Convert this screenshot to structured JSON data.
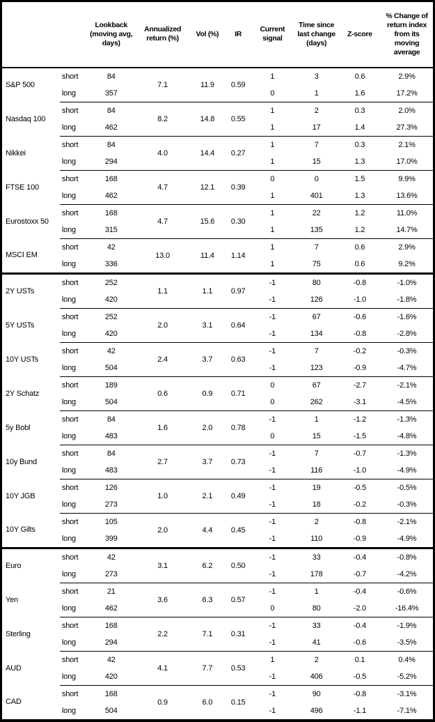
{
  "header": {
    "col_asset": "",
    "col_horizon": "",
    "col_lookback": "Lookback (moving avg, days)",
    "col_annualized_return": "Annualized return (%)",
    "col_vol": "Vol (%)",
    "col_ir": "IR",
    "col_current_signal": "Current signal",
    "col_time_since": "Time since last change (days)",
    "col_zscore": "Z-score",
    "col_pct_change": "% Change of return index from its moving average"
  },
  "colors": {
    "text": "#000000",
    "border": "#000000",
    "background": "#ffffff"
  },
  "sections": [
    [
      {
        "name": "S&P 500",
        "annualized_return": "7.1",
        "vol": "11.9",
        "ir": "0.59",
        "rows": [
          {
            "label": "short",
            "lookback": "84",
            "signal": "1",
            "days": "3",
            "zscore": "0.6",
            "pct_change": "2.9%"
          },
          {
            "label": "long",
            "lookback": "357",
            "signal": "0",
            "days": "1",
            "zscore": "1.6",
            "pct_change": "17.2%"
          }
        ]
      },
      {
        "name": "Nasdaq 100",
        "annualized_return": "8.2",
        "vol": "14.8",
        "ir": "0.55",
        "rows": [
          {
            "label": "short",
            "lookback": "84",
            "signal": "1",
            "days": "2",
            "zscore": "0.3",
            "pct_change": "2.0%"
          },
          {
            "label": "long",
            "lookback": "462",
            "signal": "1",
            "days": "17",
            "zscore": "1.4",
            "pct_change": "27.3%"
          }
        ]
      },
      {
        "name": "Nikkei",
        "annualized_return": "4.0",
        "vol": "14.4",
        "ir": "0.27",
        "rows": [
          {
            "label": "short",
            "lookback": "84",
            "signal": "1",
            "days": "7",
            "zscore": "0.3",
            "pct_change": "2.1%"
          },
          {
            "label": "long",
            "lookback": "294",
            "signal": "1",
            "days": "15",
            "zscore": "1.3",
            "pct_change": "17.0%"
          }
        ]
      },
      {
        "name": "FTSE 100",
        "annualized_return": "4.7",
        "vol": "12.1",
        "ir": "0.39",
        "rows": [
          {
            "label": "short",
            "lookback": "168",
            "signal": "0",
            "days": "0",
            "zscore": "1.5",
            "pct_change": "9.9%"
          },
          {
            "label": "long",
            "lookback": "462",
            "signal": "1",
            "days": "401",
            "zscore": "1.3",
            "pct_change": "13.6%"
          }
        ]
      },
      {
        "name": "Eurostoxx 50",
        "annualized_return": "4.7",
        "vol": "15.6",
        "ir": "0.30",
        "rows": [
          {
            "label": "short",
            "lookback": "168",
            "signal": "1",
            "days": "22",
            "zscore": "1.2",
            "pct_change": "11.0%"
          },
          {
            "label": "long",
            "lookback": "315",
            "signal": "1",
            "days": "135",
            "zscore": "1.2",
            "pct_change": "14.7%"
          }
        ]
      },
      {
        "name": "MSCI EM",
        "annualized_return": "13.0",
        "vol": "11.4",
        "ir": "1.14",
        "rows": [
          {
            "label": "short",
            "lookback": "42",
            "signal": "1",
            "days": "7",
            "zscore": "0.6",
            "pct_change": "2.9%"
          },
          {
            "label": "long",
            "lookback": "336",
            "signal": "1",
            "days": "75",
            "zscore": "0.6",
            "pct_change": "9.2%"
          }
        ]
      }
    ],
    [
      {
        "name": "2Y USTs",
        "annualized_return": "1.1",
        "vol": "1.1",
        "ir": "0.97",
        "rows": [
          {
            "label": "short",
            "lookback": "252",
            "signal": "-1",
            "days": "80",
            "zscore": "-0.8",
            "pct_change": "-1.0%"
          },
          {
            "label": "long",
            "lookback": "420",
            "signal": "-1",
            "days": "126",
            "zscore": "-1.0",
            "pct_change": "-1.8%"
          }
        ]
      },
      {
        "name": "5Y USTs",
        "annualized_return": "2.0",
        "vol": "3.1",
        "ir": "0.64",
        "rows": [
          {
            "label": "short",
            "lookback": "252",
            "signal": "-1",
            "days": "67",
            "zscore": "-0.6",
            "pct_change": "-1.6%"
          },
          {
            "label": "long",
            "lookback": "420",
            "signal": "-1",
            "days": "134",
            "zscore": "-0.8",
            "pct_change": "-2.8%"
          }
        ]
      },
      {
        "name": "10Y USTs",
        "annualized_return": "2.4",
        "vol": "3.7",
        "ir": "0.63",
        "rows": [
          {
            "label": "short",
            "lookback": "42",
            "signal": "-1",
            "days": "7",
            "zscore": "-0.2",
            "pct_change": "-0.3%"
          },
          {
            "label": "long",
            "lookback": "504",
            "signal": "-1",
            "days": "123",
            "zscore": "-0.9",
            "pct_change": "-4.7%"
          }
        ]
      },
      {
        "name": "2Y Schatz",
        "annualized_return": "0.6",
        "vol": "0.9",
        "ir": "0.71",
        "rows": [
          {
            "label": "short",
            "lookback": "189",
            "signal": "0",
            "days": "67",
            "zscore": "-2.7",
            "pct_change": "-2.1%"
          },
          {
            "label": "long",
            "lookback": "504",
            "signal": "0",
            "days": "262",
            "zscore": "-3.1",
            "pct_change": "-4.5%"
          }
        ]
      },
      {
        "name": "5y Bobl",
        "annualized_return": "1.6",
        "vol": "2.0",
        "ir": "0.78",
        "rows": [
          {
            "label": "short",
            "lookback": "84",
            "signal": "-1",
            "days": "1",
            "zscore": "-1.2",
            "pct_change": "-1.3%"
          },
          {
            "label": "long",
            "lookback": "483",
            "signal": "0",
            "days": "15",
            "zscore": "-1.5",
            "pct_change": "-4.8%"
          }
        ]
      },
      {
        "name": "10y Bund",
        "annualized_return": "2.7",
        "vol": "3.7",
        "ir": "0.73",
        "rows": [
          {
            "label": "short",
            "lookback": "84",
            "signal": "-1",
            "days": "7",
            "zscore": "-0.7",
            "pct_change": "-1.3%"
          },
          {
            "label": "long",
            "lookback": "483",
            "signal": "-1",
            "days": "116",
            "zscore": "-1.0",
            "pct_change": "-4.9%"
          }
        ]
      },
      {
        "name": "10Y JGB",
        "annualized_return": "1.0",
        "vol": "2.1",
        "ir": "0.49",
        "rows": [
          {
            "label": "short",
            "lookback": "126",
            "signal": "-1",
            "days": "19",
            "zscore": "-0.5",
            "pct_change": "-0.5%"
          },
          {
            "label": "long",
            "lookback": "273",
            "signal": "-1",
            "days": "18",
            "zscore": "-0.2",
            "pct_change": "-0.3%"
          }
        ]
      },
      {
        "name": "10Y Gilts",
        "annualized_return": "2.0",
        "vol": "4.4",
        "ir": "0.45",
        "rows": [
          {
            "label": "short",
            "lookback": "105",
            "signal": "-1",
            "days": "2",
            "zscore": "-0.8",
            "pct_change": "-2.1%"
          },
          {
            "label": "long",
            "lookback": "399",
            "signal": "-1",
            "days": "110",
            "zscore": "-0.9",
            "pct_change": "-4.9%"
          }
        ]
      }
    ],
    [
      {
        "name": "Euro",
        "annualized_return": "3.1",
        "vol": "6.2",
        "ir": "0.50",
        "rows": [
          {
            "label": "short",
            "lookback": "42",
            "signal": "-1",
            "days": "33",
            "zscore": "-0.4",
            "pct_change": "-0.8%"
          },
          {
            "label": "long",
            "lookback": "273",
            "signal": "-1",
            "days": "178",
            "zscore": "-0.7",
            "pct_change": "-4.2%"
          }
        ]
      },
      {
        "name": "Yen",
        "annualized_return": "3.6",
        "vol": "6.3",
        "ir": "0.57",
        "rows": [
          {
            "label": "short",
            "lookback": "21",
            "signal": "-1",
            "days": "1",
            "zscore": "-0.4",
            "pct_change": "-0.6%"
          },
          {
            "label": "long",
            "lookback": "462",
            "signal": "0",
            "days": "80",
            "zscore": "-2.0",
            "pct_change": "-16.4%"
          }
        ]
      },
      {
        "name": "Sterling",
        "annualized_return": "2.2",
        "vol": "7.1",
        "ir": "0.31",
        "rows": [
          {
            "label": "short",
            "lookback": "168",
            "signal": "-1",
            "days": "33",
            "zscore": "-0.4",
            "pct_change": "-1.9%"
          },
          {
            "label": "long",
            "lookback": "294",
            "signal": "-1",
            "days": "41",
            "zscore": "-0.6",
            "pct_change": "-3.5%"
          }
        ]
      },
      {
        "name": "AUD",
        "annualized_return": "4.1",
        "vol": "7.7",
        "ir": "0.53",
        "rows": [
          {
            "label": "short",
            "lookback": "42",
            "signal": "1",
            "days": "2",
            "zscore": "0.1",
            "pct_change": "0.4%"
          },
          {
            "label": "long",
            "lookback": "420",
            "signal": "-1",
            "days": "406",
            "zscore": "-0.5",
            "pct_change": "-5.2%"
          }
        ]
      },
      {
        "name": "CAD",
        "annualized_return": "0.9",
        "vol": "6.0",
        "ir": "0.15",
        "rows": [
          {
            "label": "short",
            "lookback": "168",
            "signal": "-1",
            "days": "90",
            "zscore": "-0.8",
            "pct_change": "-3.1%"
          },
          {
            "label": "long",
            "lookback": "504",
            "signal": "-1",
            "days": "496",
            "zscore": "-1.1",
            "pct_change": "-7.1%"
          }
        ]
      }
    ]
  ]
}
